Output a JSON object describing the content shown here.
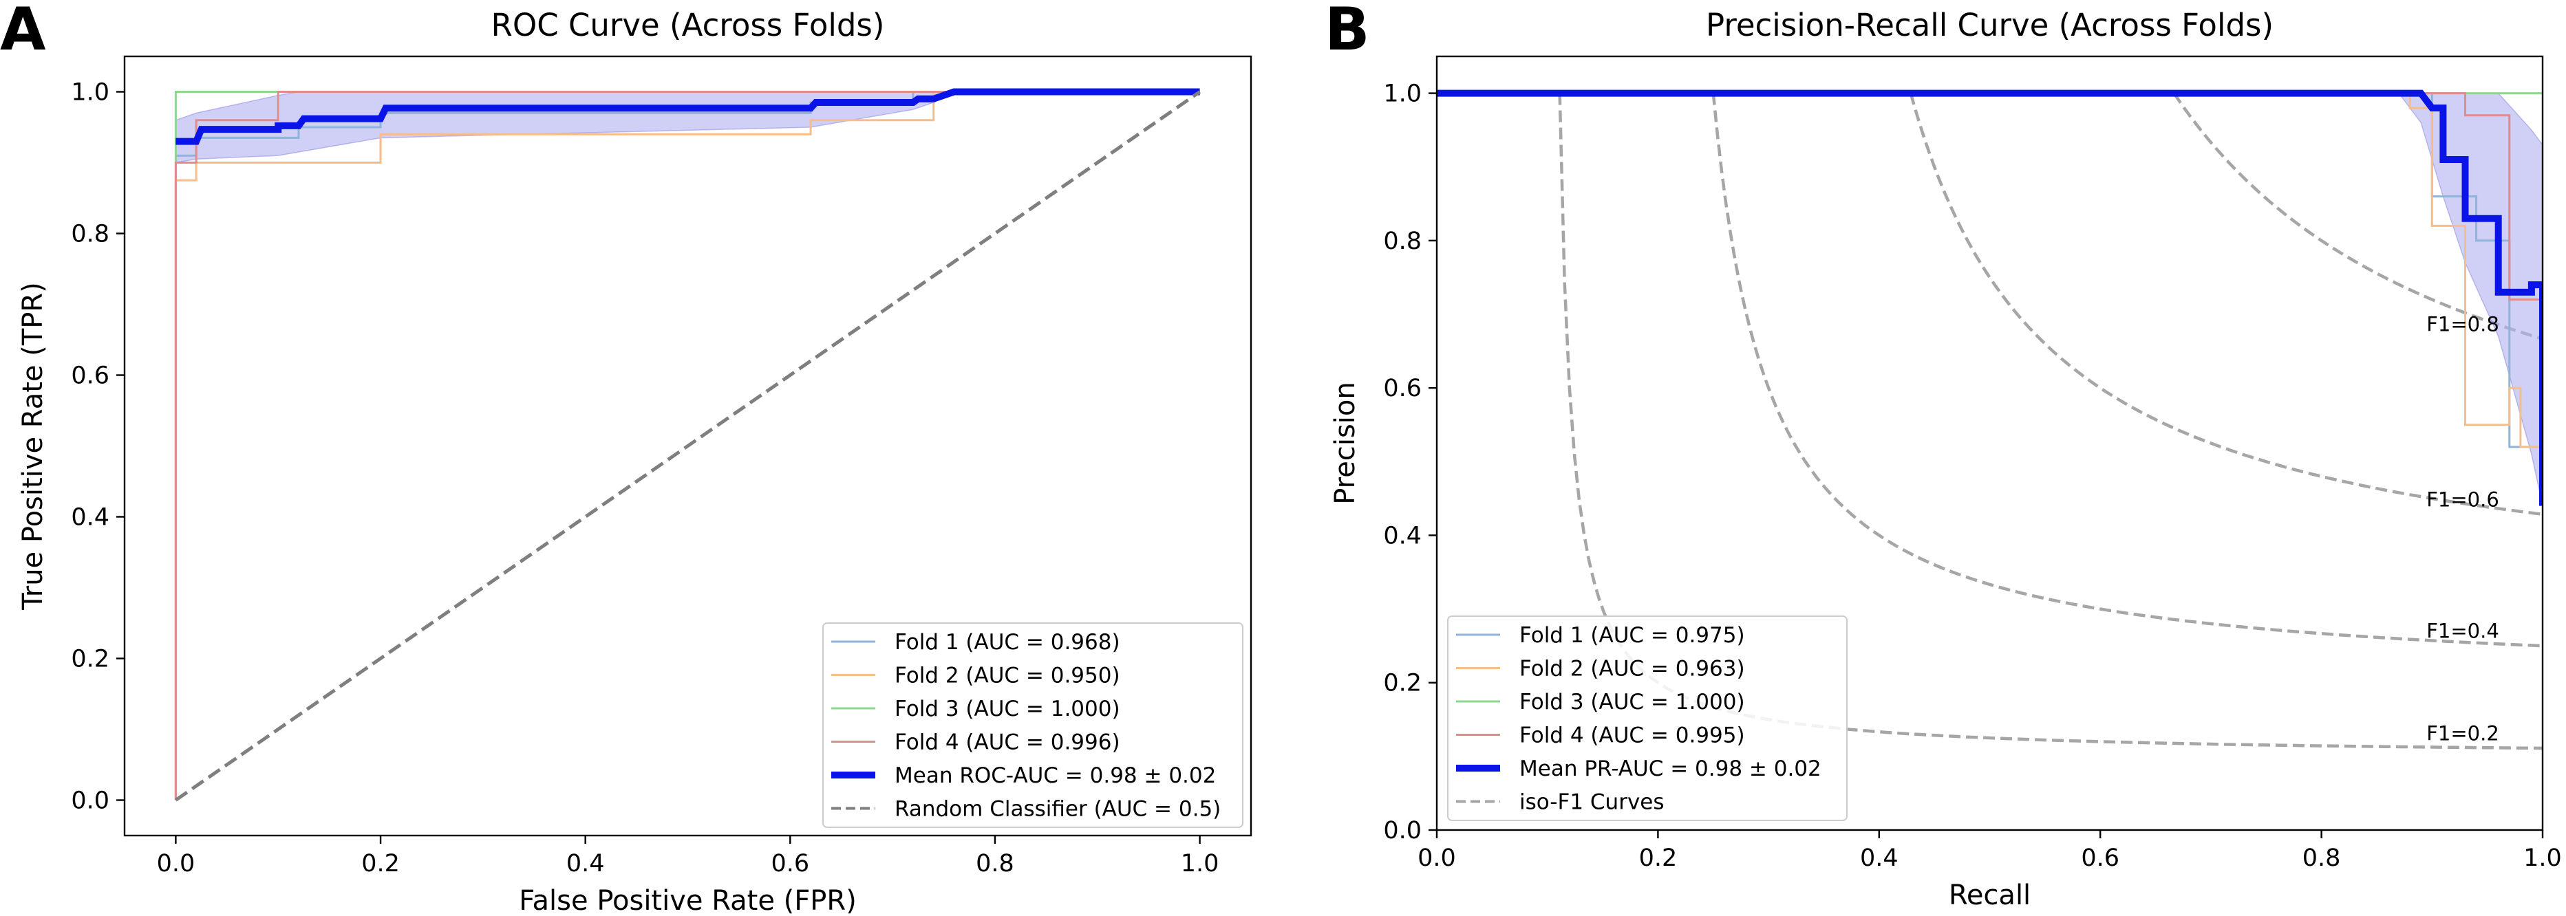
{
  "panels": [
    {
      "letter": "A",
      "title": "ROC Curve (Across Folds)",
      "xlabel": "False Positive Rate (FPR)",
      "ylabel": "True Positive Rate (TPR)",
      "xlim": [
        -0.05,
        1.05
      ],
      "ylim": [
        -0.05,
        1.05
      ],
      "xticks": [
        0.0,
        0.2,
        0.4,
        0.6,
        0.8,
        1.0
      ],
      "yticks": [
        0.0,
        0.2,
        0.4,
        0.6,
        0.8,
        1.0
      ],
      "tick_labels_x": [
        "0.0",
        "0.2",
        "0.4",
        "0.6",
        "0.8",
        "1.0"
      ],
      "tick_labels_y": [
        "0.0",
        "0.2",
        "0.4",
        "0.6",
        "0.8",
        "1.0"
      ],
      "legend_labels": [
        "Fold 1 (AUC = 0.968)",
        "Fold 2 (AUC = 0.950)",
        "Fold 3 (AUC = 1.000)",
        "Fold 4 (AUC = 0.996)",
        "Mean ROC-AUC = 0.98 ± 0.02",
        "Random Classifier (AUC = 0.5)"
      ]
    },
    {
      "letter": "B",
      "title": "Precision-Recall Curve (Across Folds)",
      "xlabel": "Recall",
      "ylabel": "Precision",
      "xlim": [
        0.0,
        1.0
      ],
      "ylim": [
        0.0,
        1.05
      ],
      "xticks": [
        0.0,
        0.2,
        0.4,
        0.6,
        0.8,
        1.0
      ],
      "yticks": [
        0.0,
        0.2,
        0.4,
        0.6,
        0.8,
        1.0
      ],
      "tick_labels_x": [
        "0.0",
        "0.2",
        "0.4",
        "0.6",
        "0.8",
        "1.0"
      ],
      "tick_labels_y": [
        "0.0",
        "0.2",
        "0.4",
        "0.6",
        "0.8",
        "1.0"
      ],
      "legend_labels": [
        "Fold 1 (AUC = 0.975)",
        "Fold 2 (AUC = 0.963)",
        "Fold 3 (AUC = 1.000)",
        "Fold 4 (AUC = 0.995)",
        "Mean PR-AUC = 0.98 ± 0.02",
        "iso-F1 Curves"
      ],
      "iso_labels": [
        "F1=0.2",
        "F1=0.4",
        "F1=0.6",
        "F1=0.8"
      ]
    }
  ],
  "colors": {
    "fold1": "#8fb3d9",
    "fold2": "#f5bd8a",
    "fold3": "#8fd68f",
    "fold4": "#e08c8c",
    "mean": "#0a14e6",
    "band": "#b3b3f2",
    "reference": "#7f7f7f",
    "iso": "#a6a6a6"
  },
  "chart_data": [
    {
      "type": "line",
      "title": "ROC Curve (Across Folds)",
      "xlabel": "False Positive Rate (FPR)",
      "ylabel": "True Positive Rate (TPR)",
      "xlim": [
        -0.05,
        1.05
      ],
      "ylim": [
        -0.05,
        1.05
      ],
      "grid": false,
      "legend": "lower-right",
      "series": [
        {
          "name": "Fold 1 (AUC = 0.968)",
          "color_key": "fold1",
          "style": "step",
          "points": [
            [
              0,
              0
            ],
            [
              0,
              0.9
            ],
            [
              0,
              0.91
            ],
            [
              0.02,
              0.91
            ],
            [
              0.02,
              0.935
            ],
            [
              0.12,
              0.935
            ],
            [
              0.12,
              0.95
            ],
            [
              0.2,
              0.95
            ],
            [
              0.2,
              0.97
            ],
            [
              0.62,
              0.97
            ],
            [
              0.62,
              0.985
            ],
            [
              0.72,
              0.985
            ],
            [
              0.72,
              1.0
            ],
            [
              1,
              1.0
            ]
          ]
        },
        {
          "name": "Fold 2 (AUC = 0.950)",
          "color_key": "fold2",
          "style": "step",
          "points": [
            [
              0,
              0
            ],
            [
              0,
              0.875
            ],
            [
              0.02,
              0.875
            ],
            [
              0.02,
              0.9
            ],
            [
              0.2,
              0.9
            ],
            [
              0.2,
              0.94
            ],
            [
              0.62,
              0.94
            ],
            [
              0.62,
              0.96
            ],
            [
              0.74,
              0.96
            ],
            [
              0.74,
              1.0
            ],
            [
              1,
              1.0
            ]
          ]
        },
        {
          "name": "Fold 3 (AUC = 1.000)",
          "color_key": "fold3",
          "style": "step",
          "points": [
            [
              0,
              0
            ],
            [
              0,
              1.0
            ],
            [
              1,
              1.0
            ]
          ]
        },
        {
          "name": "Fold 4 (AUC = 0.996)",
          "color_key": "fold4",
          "style": "step",
          "points": [
            [
              0,
              0
            ],
            [
              0,
              0.9
            ],
            [
              0.02,
              0.9
            ],
            [
              0.02,
              0.96
            ],
            [
              0.1,
              0.96
            ],
            [
              0.1,
              1.0
            ],
            [
              1,
              1.0
            ]
          ]
        },
        {
          "name": "Mean ROC-AUC = 0.98 ± 0.02",
          "color_key": "mean",
          "style": "step",
          "thick": true,
          "points": [
            [
              0,
              0.93
            ],
            [
              0.02,
              0.93
            ],
            [
              0.025,
              0.947
            ],
            [
              0.1,
              0.947
            ],
            [
              0.1,
              0.952
            ],
            [
              0.12,
              0.952
            ],
            [
              0.125,
              0.962
            ],
            [
              0.2,
              0.962
            ],
            [
              0.205,
              0.977
            ],
            [
              0.62,
              0.977
            ],
            [
              0.625,
              0.985
            ],
            [
              0.72,
              0.985
            ],
            [
              0.725,
              0.99
            ],
            [
              0.74,
              0.99
            ],
            [
              0.76,
              1.0
            ],
            [
              1,
              1.0
            ]
          ]
        },
        {
          "name": "Random Classifier (AUC = 0.5)",
          "color_key": "reference",
          "style": "dashed",
          "points": [
            [
              0,
              0
            ],
            [
              1,
              1
            ]
          ]
        }
      ],
      "band": {
        "x": [
          0,
          0.02,
          0.1,
          0.12,
          0.2,
          0.62,
          0.72,
          0.74,
          0.76,
          1.0
        ],
        "upper": [
          0.96,
          0.97,
          0.995,
          1.0,
          1.0,
          1.0,
          1.0,
          1.0,
          1.0,
          1.0
        ],
        "lower": [
          0.9,
          0.905,
          0.91,
          0.915,
          0.935,
          0.95,
          0.975,
          0.985,
          1.0,
          1.0
        ]
      }
    },
    {
      "type": "line",
      "title": "Precision-Recall Curve (Across Folds)",
      "xlabel": "Recall",
      "ylabel": "Precision",
      "xlim": [
        0,
        1
      ],
      "ylim": [
        0,
        1.05
      ],
      "grid": false,
      "legend": "lower-left",
      "series": [
        {
          "name": "Fold 1 (AUC = 0.975)",
          "color_key": "fold1",
          "style": "step",
          "points": [
            [
              0,
              1.0
            ],
            [
              0.9,
              1.0
            ],
            [
              0.9,
              0.86
            ],
            [
              0.94,
              0.86
            ],
            [
              0.94,
              0.8
            ],
            [
              0.97,
              0.8
            ],
            [
              0.97,
              0.52
            ],
            [
              1.0,
              0.52
            ]
          ]
        },
        {
          "name": "Fold 2 (AUC = 0.963)",
          "color_key": "fold2",
          "style": "step",
          "points": [
            [
              0,
              1.0
            ],
            [
              0.88,
              1.0
            ],
            [
              0.88,
              0.98
            ],
            [
              0.9,
              0.98
            ],
            [
              0.9,
              0.82
            ],
            [
              0.93,
              0.82
            ],
            [
              0.93,
              0.55
            ],
            [
              0.97,
              0.55
            ],
            [
              0.97,
              0.6
            ],
            [
              0.98,
              0.6
            ],
            [
              0.98,
              0.52
            ],
            [
              1.0,
              0.52
            ]
          ]
        },
        {
          "name": "Fold 3 (AUC = 1.000)",
          "color_key": "fold3",
          "style": "step",
          "points": [
            [
              0,
              1.0
            ],
            [
              1,
              1.0
            ]
          ]
        },
        {
          "name": "Fold 4 (AUC = 0.995)",
          "color_key": "fold4",
          "style": "step",
          "points": [
            [
              0,
              1.0
            ],
            [
              0.93,
              1.0
            ],
            [
              0.93,
              0.97
            ],
            [
              0.97,
              0.97
            ],
            [
              0.97,
              0.72
            ],
            [
              1.0,
              0.72
            ]
          ]
        },
        {
          "name": "Mean PR-AUC = 0.98 ± 0.02",
          "color_key": "mean",
          "style": "step",
          "thick": true,
          "points": [
            [
              0,
              1.0
            ],
            [
              0.89,
              1.0
            ],
            [
              0.9,
              0.98
            ],
            [
              0.91,
              0.98
            ],
            [
              0.91,
              0.91
            ],
            [
              0.93,
              0.91
            ],
            [
              0.93,
              0.83
            ],
            [
              0.96,
              0.83
            ],
            [
              0.96,
              0.73
            ],
            [
              0.99,
              0.73
            ],
            [
              0.99,
              0.74
            ],
            [
              1.0,
              0.74
            ],
            [
              1.0,
              0.44
            ]
          ]
        }
      ],
      "band": {
        "x": [
          0,
          0.87,
          0.89,
          0.91,
          0.93,
          0.96,
          0.99,
          1.0
        ],
        "upper": [
          1.0,
          1.0,
          1.0,
          1.0,
          1.0,
          1.0,
          0.95,
          0.93
        ],
        "lower": [
          1.0,
          1.0,
          0.96,
          0.86,
          0.77,
          0.67,
          0.51,
          0.44
        ]
      },
      "iso_f1": [
        0.2,
        0.4,
        0.6,
        0.8
      ]
    }
  ]
}
